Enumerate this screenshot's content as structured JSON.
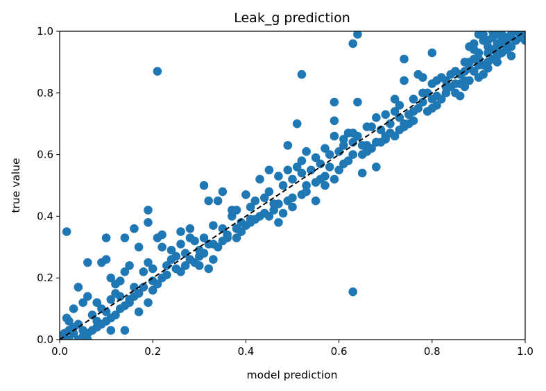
{
  "chart_data": {
    "type": "scatter",
    "title": "Leak_g prediction",
    "xlabel": "model prediction",
    "ylabel": "true value",
    "xlim": [
      0,
      1
    ],
    "ylim": [
      0,
      1
    ],
    "xticks": [
      "0.0",
      "0.2",
      "0.4",
      "0.6",
      "0.8",
      "1.0"
    ],
    "yticks": [
      "0.0",
      "0.2",
      "0.4",
      "0.6",
      "0.8",
      "1.0"
    ],
    "grid": false,
    "point_color": "#1f77b4",
    "reference_line": {
      "style": "dashed",
      "color": "#000000",
      "from": [
        0,
        0
      ],
      "to": [
        1,
        1
      ]
    },
    "series": [
      {
        "points": [
          [
            0.01,
            0.01
          ],
          [
            0.02,
            0.03
          ],
          [
            0.015,
            0.07
          ],
          [
            0.03,
            0.02
          ],
          [
            0.04,
            0.05
          ],
          [
            0.05,
            0.03
          ],
          [
            0.06,
            0.0
          ],
          [
            0.03,
            0.1
          ],
          [
            0.05,
            0.12
          ],
          [
            0.02,
            0.06
          ],
          [
            0.07,
            0.08
          ],
          [
            0.08,
            0.06
          ],
          [
            0.06,
            0.14
          ],
          [
            0.04,
            0.17
          ],
          [
            0.08,
            0.12
          ],
          [
            0.09,
            0.1
          ],
          [
            0.1,
            0.09
          ],
          [
            0.06,
            0.25
          ],
          [
            0.09,
            0.25
          ],
          [
            0.1,
            0.26
          ],
          [
            0.11,
            0.13
          ],
          [
            0.12,
            0.15
          ],
          [
            0.13,
            0.14
          ],
          [
            0.11,
            0.2
          ],
          [
            0.12,
            0.18
          ],
          [
            0.14,
            0.22
          ],
          [
            0.15,
            0.24
          ],
          [
            0.13,
            0.19
          ],
          [
            0.16,
            0.17
          ],
          [
            0.15,
            0.13
          ],
          [
            0.14,
            0.33
          ],
          [
            0.16,
            0.36
          ],
          [
            0.17,
            0.3
          ],
          [
            0.18,
            0.22
          ],
          [
            0.19,
            0.25
          ],
          [
            0.2,
            0.23
          ],
          [
            0.19,
            0.42
          ],
          [
            0.19,
            0.38
          ],
          [
            0.21,
            0.33
          ],
          [
            0.22,
            0.3
          ],
          [
            0.23,
            0.24
          ],
          [
            0.22,
            0.34
          ],
          [
            0.24,
            0.29
          ],
          [
            0.25,
            0.27
          ],
          [
            0.26,
            0.31
          ],
          [
            0.27,
            0.28
          ],
          [
            0.28,
            0.33
          ],
          [
            0.29,
            0.32
          ],
          [
            0.3,
            0.29
          ],
          [
            0.31,
            0.33
          ],
          [
            0.32,
            0.31
          ],
          [
            0.31,
            0.5
          ],
          [
            0.32,
            0.45
          ],
          [
            0.34,
            0.45
          ],
          [
            0.33,
            0.37
          ],
          [
            0.35,
            0.36
          ],
          [
            0.36,
            0.34
          ],
          [
            0.37,
            0.4
          ],
          [
            0.38,
            0.42
          ],
          [
            0.39,
            0.38
          ],
          [
            0.4,
            0.47
          ],
          [
            0.41,
            0.43
          ],
          [
            0.42,
            0.45
          ],
          [
            0.43,
            0.4
          ],
          [
            0.44,
            0.46
          ],
          [
            0.45,
            0.48
          ],
          [
            0.46,
            0.44
          ],
          [
            0.47,
            0.53
          ],
          [
            0.48,
            0.5
          ],
          [
            0.49,
            0.55
          ],
          [
            0.5,
            0.52
          ],
          [
            0.51,
            0.56
          ],
          [
            0.52,
            0.54
          ],
          [
            0.53,
            0.5
          ],
          [
            0.54,
            0.55
          ],
          [
            0.55,
            0.59
          ],
          [
            0.56,
            0.57
          ],
          [
            0.57,
            0.62
          ],
          [
            0.58,
            0.6
          ],
          [
            0.59,
            0.66
          ],
          [
            0.6,
            0.61
          ],
          [
            0.61,
            0.63
          ],
          [
            0.62,
            0.58
          ],
          [
            0.63,
            0.64
          ],
          [
            0.64,
            0.66
          ],
          [
            0.65,
            0.6
          ],
          [
            0.66,
            0.63
          ],
          [
            0.67,
            0.69
          ],
          [
            0.68,
            0.72
          ],
          [
            0.69,
            0.68
          ],
          [
            0.7,
            0.66
          ],
          [
            0.71,
            0.7
          ],
          [
            0.72,
            0.74
          ],
          [
            0.73,
            0.72
          ],
          [
            0.74,
            0.69
          ],
          [
            0.75,
            0.73
          ],
          [
            0.76,
            0.78
          ],
          [
            0.77,
            0.75
          ],
          [
            0.78,
            0.77
          ],
          [
            0.79,
            0.8
          ],
          [
            0.8,
            0.83
          ],
          [
            0.81,
            0.79
          ],
          [
            0.82,
            0.85
          ],
          [
            0.83,
            0.84
          ],
          [
            0.84,
            0.82
          ],
          [
            0.85,
            0.87
          ],
          [
            0.86,
            0.86
          ],
          [
            0.87,
            0.9
          ],
          [
            0.88,
            0.88
          ],
          [
            0.89,
            0.91
          ],
          [
            0.9,
            0.93
          ],
          [
            0.9,
            0.99
          ],
          [
            0.91,
            0.97
          ],
          [
            0.92,
            0.95
          ],
          [
            0.93,
            1.0
          ],
          [
            0.94,
            0.96
          ],
          [
            0.95,
            0.99
          ],
          [
            0.96,
            0.97
          ],
          [
            0.97,
            0.98
          ],
          [
            0.98,
            1.0
          ],
          [
            1.0,
            0.97
          ],
          [
            0.92,
            0.88
          ],
          [
            0.93,
            0.91
          ],
          [
            0.91,
            0.86
          ],
          [
            0.94,
            0.9
          ],
          [
            0.95,
            0.93
          ],
          [
            0.96,
            0.94
          ],
          [
            0.97,
            0.92
          ],
          [
            0.89,
            0.96
          ],
          [
            0.88,
            0.95
          ],
          [
            0.015,
            0.35
          ],
          [
            0.21,
            0.87
          ],
          [
            0.52,
            0.86
          ],
          [
            0.63,
            0.96
          ],
          [
            0.64,
            0.99
          ],
          [
            0.63,
            0.155
          ],
          [
            0.74,
            0.91
          ],
          [
            0.8,
            0.93
          ],
          [
            0.77,
            0.86
          ],
          [
            0.78,
            0.85
          ],
          [
            0.51,
            0.7
          ],
          [
            0.59,
            0.77
          ],
          [
            0.59,
            0.71
          ],
          [
            0.64,
            0.77
          ],
          [
            0.49,
            0.63
          ],
          [
            0.35,
            0.48
          ],
          [
            0.68,
            0.56
          ],
          [
            0.7,
            0.65
          ],
          [
            0.62,
            0.67
          ],
          [
            0.66,
            0.61
          ],
          [
            0.73,
            0.76
          ],
          [
            0.72,
            0.66
          ],
          [
            0.74,
            0.84
          ],
          [
            0.8,
            0.75
          ],
          [
            0.82,
            0.78
          ],
          [
            0.85,
            0.8
          ],
          [
            0.86,
            0.83
          ],
          [
            0.84,
            0.86
          ],
          [
            0.87,
            0.84
          ],
          [
            0.89,
            0.87
          ],
          [
            0.9,
            0.85
          ],
          [
            0.91,
            0.89
          ],
          [
            0.92,
            0.93
          ],
          [
            0.93,
            0.94
          ],
          [
            0.94,
            0.92
          ],
          [
            0.95,
            0.96
          ],
          [
            0.96,
            0.98
          ],
          [
            0.97,
            0.95
          ],
          [
            0.98,
            0.97
          ],
          [
            0.99,
            0.99
          ],
          [
            0.9,
            0.89
          ],
          [
            0.88,
            0.84
          ],
          [
            0.87,
            0.82
          ],
          [
            0.86,
            0.79
          ],
          [
            0.83,
            0.8
          ],
          [
            0.81,
            0.76
          ],
          [
            0.79,
            0.74
          ],
          [
            0.76,
            0.71
          ],
          [
            0.75,
            0.7
          ],
          [
            0.73,
            0.68
          ],
          [
            0.71,
            0.67
          ],
          [
            0.69,
            0.64
          ],
          [
            0.67,
            0.62
          ],
          [
            0.65,
            0.63
          ],
          [
            0.63,
            0.6
          ],
          [
            0.61,
            0.57
          ],
          [
            0.6,
            0.55
          ],
          [
            0.58,
            0.56
          ],
          [
            0.57,
            0.53
          ],
          [
            0.56,
            0.52
          ],
          [
            0.55,
            0.51
          ],
          [
            0.53,
            0.48
          ],
          [
            0.52,
            0.47
          ],
          [
            0.5,
            0.46
          ],
          [
            0.49,
            0.45
          ],
          [
            0.47,
            0.44
          ],
          [
            0.46,
            0.42
          ],
          [
            0.45,
            0.4
          ],
          [
            0.44,
            0.41
          ],
          [
            0.42,
            0.39
          ],
          [
            0.41,
            0.38
          ],
          [
            0.4,
            0.37
          ],
          [
            0.39,
            0.35
          ],
          [
            0.38,
            0.36
          ],
          [
            0.36,
            0.33
          ],
          [
            0.35,
            0.32
          ],
          [
            0.34,
            0.3
          ],
          [
            0.33,
            0.31
          ],
          [
            0.31,
            0.28
          ],
          [
            0.3,
            0.27
          ],
          [
            0.29,
            0.25
          ],
          [
            0.28,
            0.26
          ],
          [
            0.27,
            0.24
          ],
          [
            0.26,
            0.22
          ],
          [
            0.25,
            0.23
          ],
          [
            0.23,
            0.21
          ],
          [
            0.22,
            0.2
          ],
          [
            0.21,
            0.18
          ],
          [
            0.2,
            0.19
          ],
          [
            0.18,
            0.17
          ],
          [
            0.17,
            0.15
          ],
          [
            0.16,
            0.14
          ],
          [
            0.15,
            0.12
          ],
          [
            0.14,
            0.11
          ],
          [
            0.13,
            0.1
          ],
          [
            0.12,
            0.08
          ],
          [
            0.11,
            0.07
          ],
          [
            0.1,
            0.06
          ],
          [
            0.09,
            0.05
          ],
          [
            0.08,
            0.04
          ],
          [
            0.07,
            0.03
          ],
          [
            0.06,
            0.02
          ],
          [
            0.05,
            0.01
          ],
          [
            0.04,
            0.0
          ],
          [
            0.03,
            0.04
          ],
          [
            0.02,
            0.0
          ],
          [
            0.01,
            0.02
          ],
          [
            0.11,
            0.03
          ],
          [
            0.14,
            0.03
          ],
          [
            0.1,
            0.33
          ],
          [
            0.17,
            0.09
          ],
          [
            0.19,
            0.12
          ],
          [
            0.2,
            0.16
          ],
          [
            0.24,
            0.26
          ],
          [
            0.26,
            0.35
          ],
          [
            0.28,
            0.36
          ],
          [
            0.3,
            0.24
          ],
          [
            0.32,
            0.23
          ],
          [
            0.33,
            0.26
          ],
          [
            0.37,
            0.42
          ],
          [
            0.38,
            0.33
          ],
          [
            0.41,
            0.39
          ],
          [
            0.43,
            0.52
          ],
          [
            0.45,
            0.55
          ],
          [
            0.47,
            0.38
          ],
          [
            0.48,
            0.41
          ],
          [
            0.5,
            0.43
          ],
          [
            0.52,
            0.58
          ],
          [
            0.53,
            0.61
          ],
          [
            0.55,
            0.45
          ],
          [
            0.57,
            0.5
          ],
          [
            0.59,
            0.52
          ],
          [
            0.61,
            0.65
          ],
          [
            0.63,
            0.67
          ],
          [
            0.65,
            0.54
          ],
          [
            0.66,
            0.69
          ],
          [
            0.68,
            0.64
          ],
          [
            0.7,
            0.73
          ],
          [
            0.72,
            0.78
          ],
          [
            0.74,
            0.7
          ],
          [
            0.76,
            0.74
          ],
          [
            0.78,
            0.8
          ],
          [
            0.8,
            0.78
          ],
          [
            0.81,
            0.84
          ],
          [
            0.83,
            0.82
          ],
          [
            0.85,
            0.83
          ],
          [
            0.87,
            0.87
          ],
          [
            0.88,
            0.9
          ],
          [
            0.9,
            0.91
          ],
          [
            0.92,
            0.9
          ],
          [
            0.94,
            0.94
          ],
          [
            0.96,
            0.95
          ],
          [
            0.97,
            0.99
          ],
          [
            0.99,
            0.98
          ],
          [
            0.91,
            0.99
          ],
          [
            0.93,
            0.98
          ],
          [
            0.95,
            0.97
          ],
          [
            0.89,
            0.94
          ],
          [
            0.92,
            0.97
          ],
          [
            0.94,
            0.99
          ]
        ]
      }
    ]
  }
}
